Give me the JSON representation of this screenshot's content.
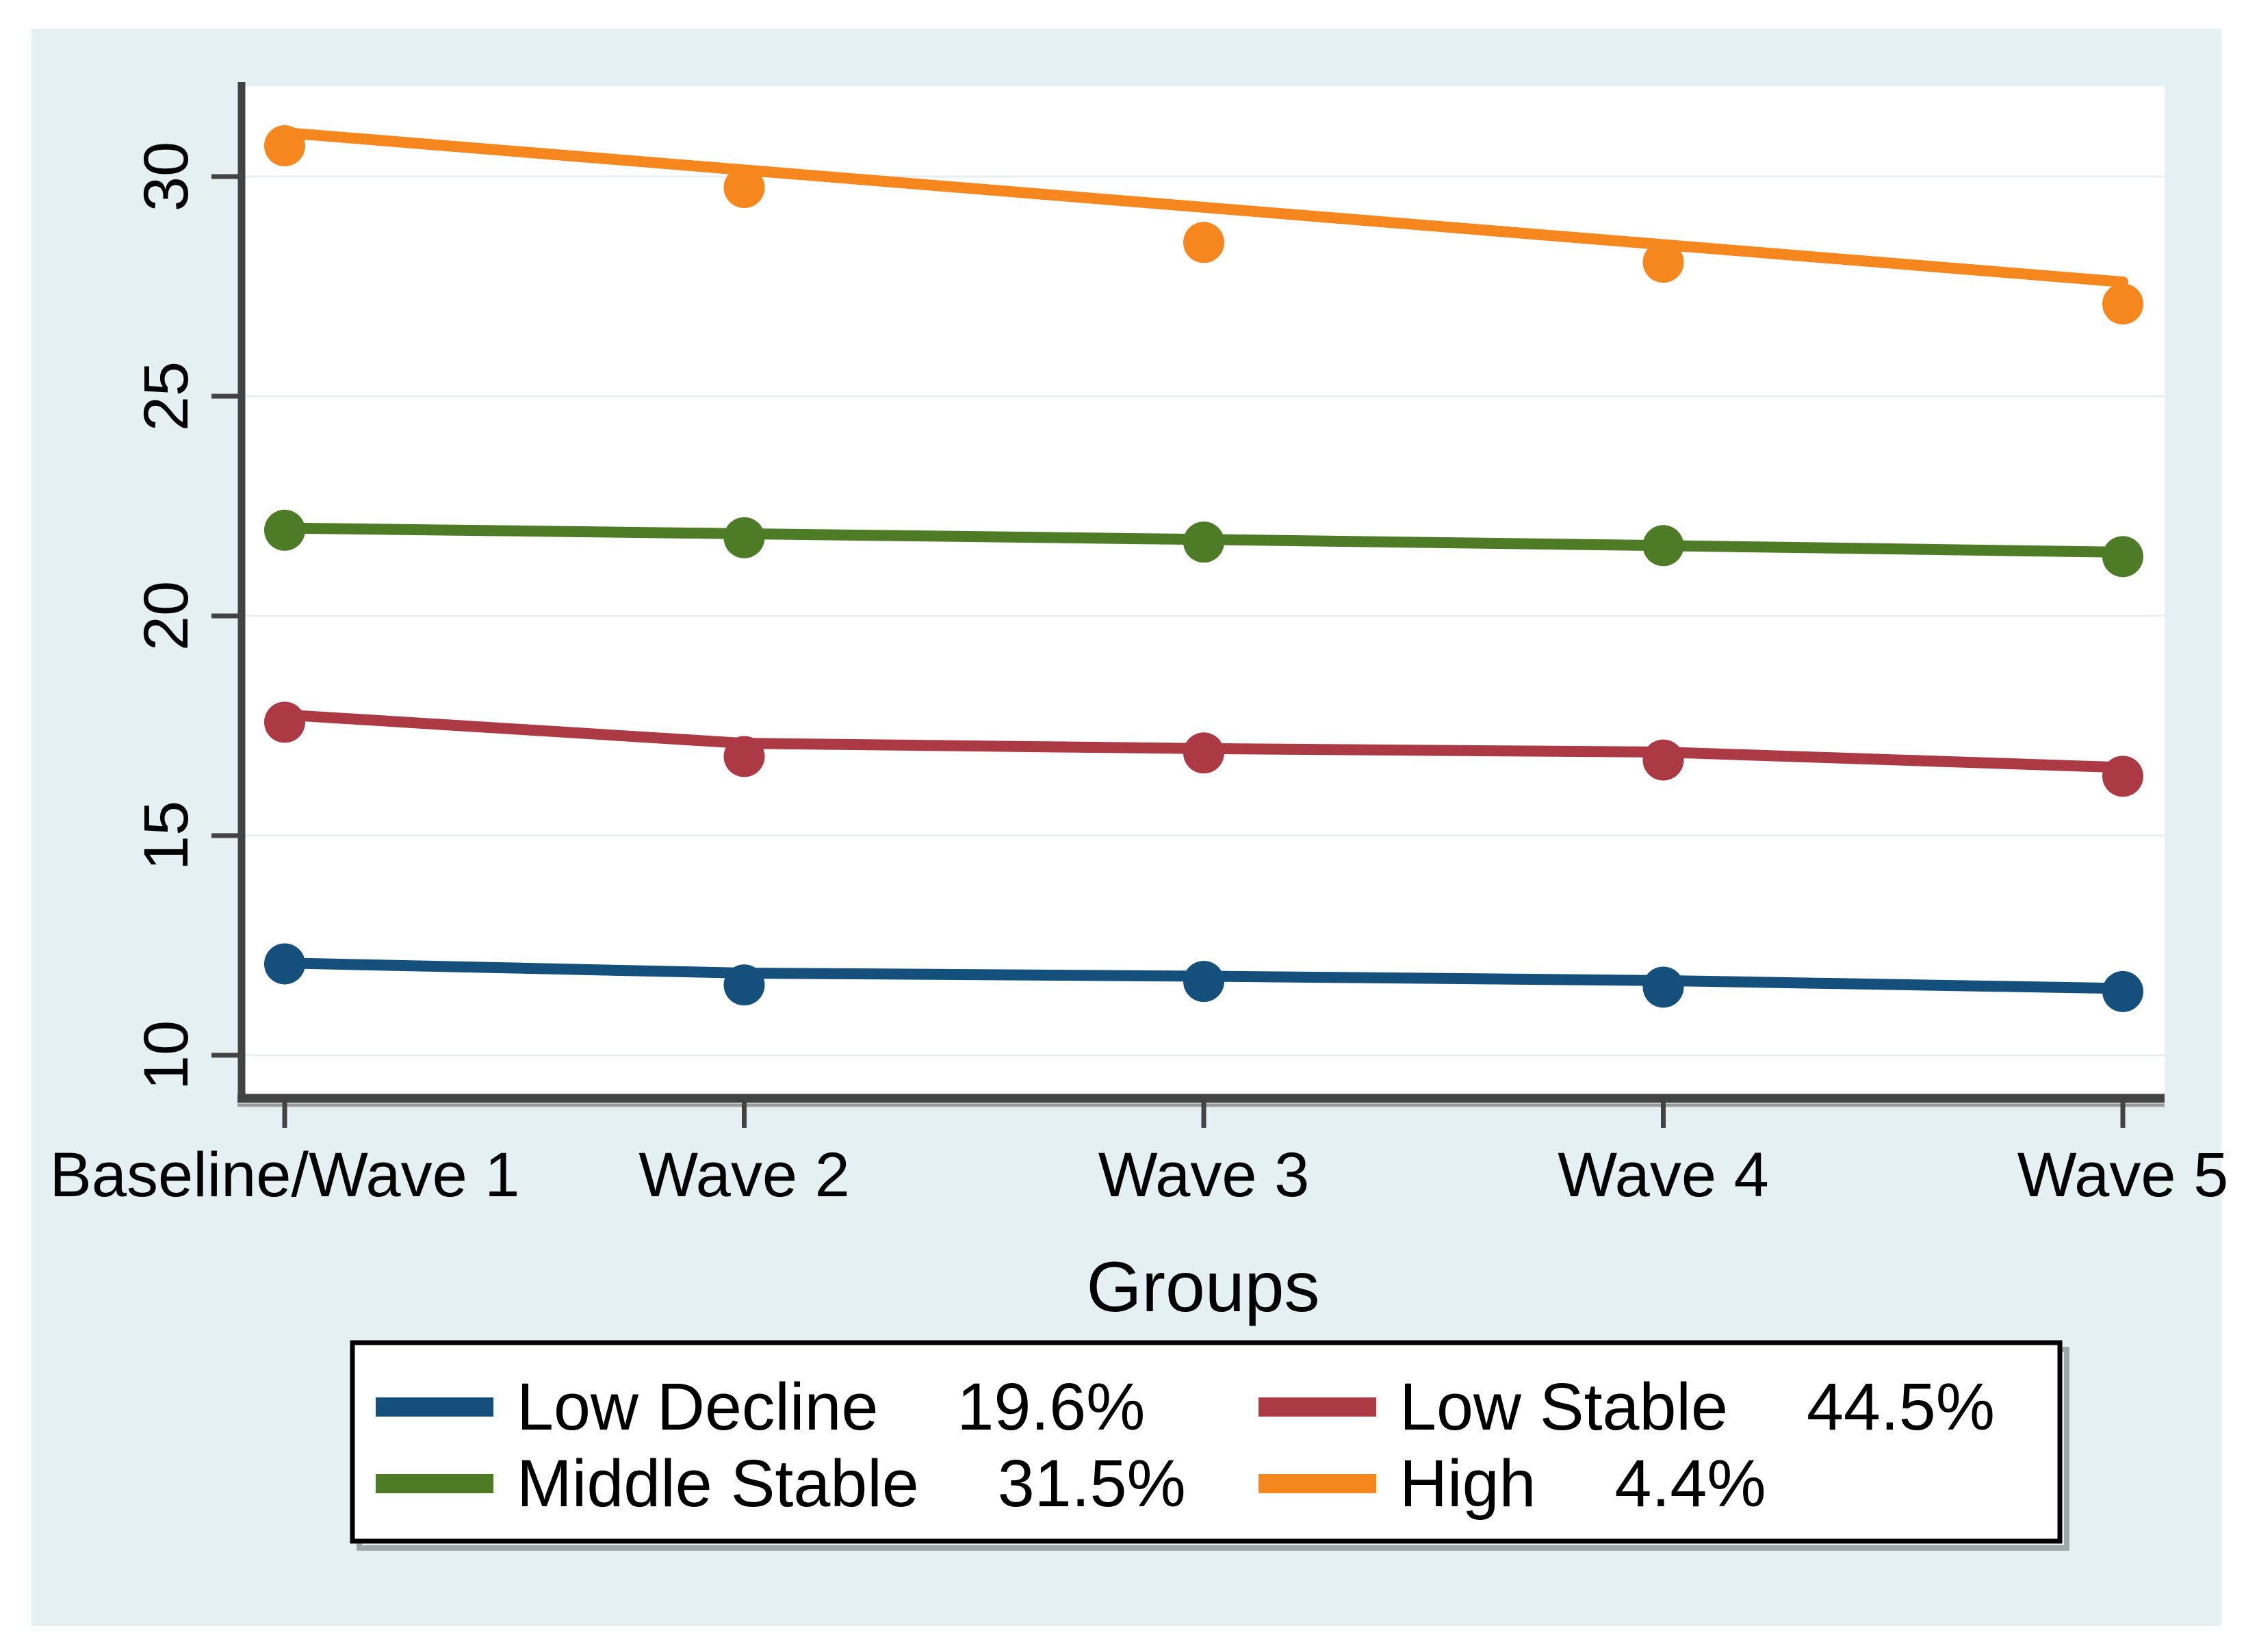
{
  "figure": {
    "page_bg": "#ffffff",
    "canvas_bg": "#E5F0F2",
    "plot_bg": "#ffffff",
    "axis_color": "#434343",
    "axis_shadow_color": "#9b9b9b",
    "grid_color": "#E6EFF2",
    "text_color": "#000000",
    "legend_bg": "#ffffff",
    "legend_border_color": "#000000",
    "legend_shadow_color": "#9FA8A8"
  },
  "chart_data": {
    "type": "line",
    "mark": "line+marker",
    "title": "",
    "xlabel": "Groups",
    "ylabel": "",
    "categories": [
      "Baseline/Wave 1",
      "Wave 2",
      "Wave 3",
      "Wave 4",
      "Wave 5"
    ],
    "y_ticks": [
      10,
      15,
      20,
      25,
      30
    ],
    "ylim": [
      9.1,
      32.0
    ],
    "grid": true,
    "legend_position": "bottom",
    "series": [
      {
        "name": "Low Decline",
        "share": "19.6%",
        "color": "#15507D",
        "line_values": [
          12.1,
          11.87,
          11.8,
          11.7,
          11.52
        ],
        "marker_values": [
          12.08,
          11.6,
          11.68,
          11.55,
          11.45
        ]
      },
      {
        "name": "Low Stable",
        "share": "44.5%",
        "color": "#AC3A44",
        "line_values": [
          17.75,
          17.1,
          16.98,
          16.9,
          16.55
        ],
        "marker_values": [
          17.58,
          16.8,
          16.88,
          16.72,
          16.35
        ]
      },
      {
        "name": "Middle Stable",
        "share": "31.5%",
        "color": "#4E7B26",
        "line_values": [
          22.0,
          21.87,
          21.74,
          21.6,
          21.45
        ],
        "marker_values": [
          21.95,
          21.78,
          21.68,
          21.6,
          21.35
        ]
      },
      {
        "name": "High",
        "share": "4.4%",
        "color": "#F6871E",
        "line_values": [
          31.0,
          30.15,
          29.3,
          28.45,
          27.6
        ],
        "marker_values": [
          30.7,
          29.75,
          28.5,
          28.05,
          27.1
        ]
      }
    ]
  }
}
